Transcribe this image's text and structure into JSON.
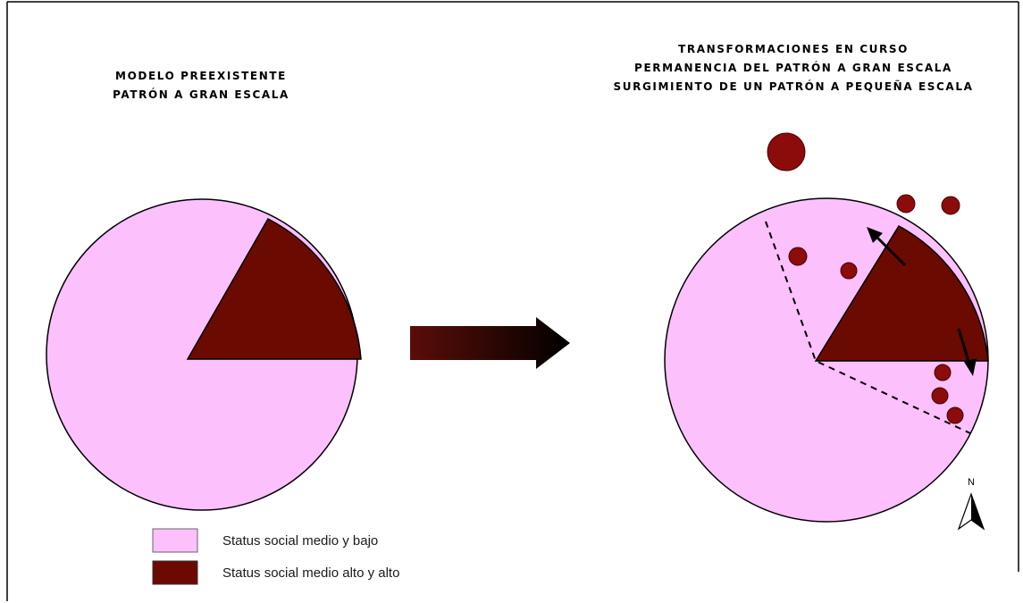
{
  "left_panel": {
    "title_lines": [
      "MODELO PREEXISTENTE",
      "PATRÓN A GRAN ESCALA"
    ]
  },
  "right_panel": {
    "title_lines": [
      "TRANSFORMACIONES EN CURSO",
      "PERMANENCIA DEL PATRÓN A GRAN ESCALA",
      "SURGIMIENTO DE UN PATRÓN A PEQUEÑA ESCALA"
    ],
    "north_label": "N"
  },
  "legend": {
    "items": [
      {
        "label": "Status social medio y bajo",
        "color": "#fcc0fc"
      },
      {
        "label": "Status social medio alto y alto",
        "color": "#6b0a00"
      }
    ]
  },
  "colors": {
    "low_status": "#fcc0fc",
    "high_status": "#6b0a00",
    "dots": "#8c0b0b",
    "arrow_start": "#5a0d08",
    "arrow_end": "#000000",
    "frame": "#000000"
  },
  "icons": {
    "transition_arrow": "right-arrow-icon",
    "north_arrow": "north-arrow-icon"
  }
}
